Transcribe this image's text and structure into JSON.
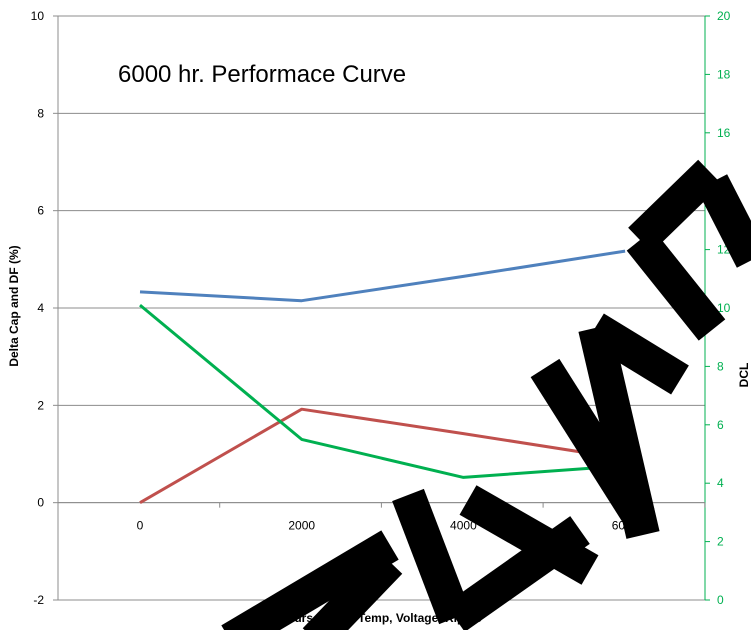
{
  "chart_data": {
    "type": "line",
    "title": "6000 hr. Performace Curve",
    "xlabel": "Hours @ Max Temp, Voltage, Ripple",
    "ylabel": "Delta Cap and DF (%)",
    "ylabel_right": "DCL",
    "x": [
      0,
      2000,
      4000,
      6000
    ],
    "x_tick_labels": [
      "0",
      "2000",
      "4000",
      "6000"
    ],
    "ylim": [
      -2,
      10
    ],
    "y_ticks": [
      -2,
      0,
      2,
      4,
      6,
      8,
      10
    ],
    "y2lim": [
      0,
      20
    ],
    "y2_ticks": [
      0,
      2,
      4,
      6,
      8,
      10,
      12,
      14,
      16,
      18,
      20
    ],
    "grid": true,
    "series": [
      {
        "axis": "left",
        "color": "#4f81bd",
        "values": [
          4.33,
          4.15,
          4.65,
          5.17
        ]
      },
      {
        "axis": "left",
        "color": "#c0504d",
        "values": [
          0.0,
          1.92,
          1.42,
          0.9
        ]
      },
      {
        "axis": "right",
        "color": "#00b050",
        "values": [
          10.1,
          5.5,
          4.2,
          4.6
        ]
      }
    ],
    "overlay": {
      "watermark_text": "PRELIMINARY",
      "color": "#000000"
    }
  }
}
